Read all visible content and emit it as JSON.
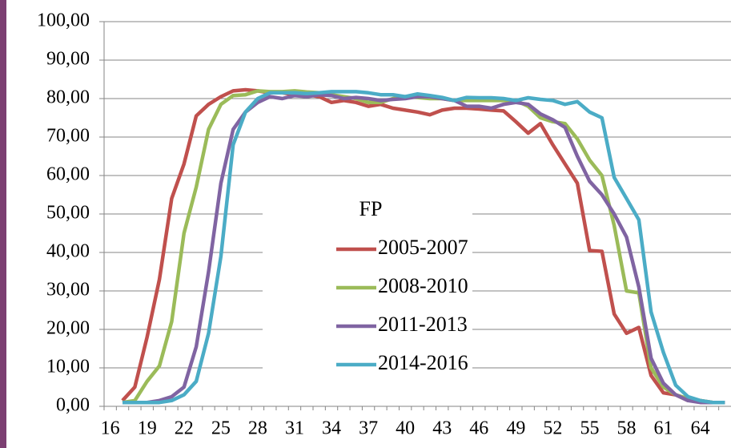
{
  "chart_data": {
    "type": "line",
    "categories": [
      "16",
      null,
      null,
      "19",
      null,
      null,
      "22",
      null,
      null,
      "25",
      null,
      null,
      "28",
      null,
      null,
      "31",
      null,
      null,
      "34",
      null,
      null,
      "37",
      null,
      null,
      "40",
      null,
      null,
      "43",
      null,
      null,
      "46",
      null,
      null,
      "49",
      null,
      null,
      "52",
      null,
      null,
      "55",
      null,
      null,
      "58",
      null,
      null,
      "61",
      null,
      null,
      "64",
      null,
      null
    ],
    "legend_title": "FP",
    "series": [
      {
        "name": "2005-2007",
        "color": "#c0504d",
        "values": [
          null,
          1.5,
          5,
          18,
          33,
          54,
          63,
          75.5,
          78.5,
          80.5,
          82,
          82.3,
          82,
          81.5,
          81.5,
          81,
          81,
          80.5,
          79,
          79.5,
          79,
          78,
          78.5,
          77.5,
          77,
          76.5,
          75.8,
          77,
          77.5,
          77.5,
          77.3,
          77,
          76.8,
          74,
          71,
          73.5,
          68,
          63,
          58,
          40.5,
          40.3,
          24,
          19,
          20.5,
          8,
          3.5,
          3,
          1.5,
          1.5,
          1,
          1
        ]
      },
      {
        "name": "2008-2010",
        "color": "#9bbb59",
        "values": [
          null,
          1,
          1.5,
          6.5,
          10.5,
          22,
          45,
          57,
          72,
          78.5,
          80.8,
          81,
          82,
          81.8,
          81.8,
          82,
          81.7,
          81.5,
          81,
          80.5,
          80,
          79,
          79,
          80,
          80.5,
          80.3,
          80,
          80,
          79.5,
          79.5,
          79.5,
          79.5,
          79.5,
          79.5,
          78,
          75,
          74,
          73.5,
          69.5,
          64,
          60,
          47,
          30,
          29.5,
          10,
          5,
          3,
          2,
          1.5,
          1,
          1
        ]
      },
      {
        "name": "2011-2013",
        "color": "#8064a2",
        "values": [
          null,
          1,
          1,
          1,
          1.5,
          2.5,
          5,
          15.5,
          35,
          58,
          72,
          76.5,
          79,
          80.5,
          80,
          80.8,
          80.5,
          81,
          80.8,
          80,
          80.3,
          80,
          79.5,
          79.8,
          80,
          80.5,
          80.5,
          80,
          79.5,
          78,
          78,
          77.5,
          78.5,
          79,
          78.5,
          76,
          74.5,
          72.5,
          65,
          58.5,
          55,
          50,
          44,
          31,
          12.5,
          6,
          3,
          1.5,
          1,
          1,
          1
        ]
      },
      {
        "name": "2014-2016",
        "color": "#4bacc6",
        "values": [
          null,
          1,
          1,
          1,
          1,
          1.5,
          3,
          6.5,
          19,
          39,
          68,
          76.5,
          80,
          81.5,
          81.5,
          81.5,
          81.3,
          81.5,
          81.8,
          81.8,
          81.8,
          81.5,
          81,
          81,
          80.5,
          81.2,
          80.8,
          80.3,
          79.5,
          80.3,
          80.2,
          80.2,
          80,
          79.5,
          80.2,
          79.8,
          79.5,
          78.5,
          79.2,
          76.5,
          75,
          59.5,
          54,
          48.5,
          24.5,
          14,
          5.5,
          2.5,
          1.5,
          1,
          1
        ]
      }
    ],
    "ylim": [
      0,
      100
    ],
    "yticks": [
      {
        "value": 0,
        "label": "0,00"
      },
      {
        "value": 10,
        "label": "10,00"
      },
      {
        "value": 20,
        "label": "20,00"
      },
      {
        "value": 30,
        "label": "30,00"
      },
      {
        "value": 40,
        "label": "40,00"
      },
      {
        "value": 50,
        "label": "50,00"
      },
      {
        "value": 60,
        "label": "60,00"
      },
      {
        "value": 70,
        "label": "70,00"
      },
      {
        "value": 80,
        "label": "80,00"
      },
      {
        "value": 90,
        "label": "90,00"
      },
      {
        "value": 100,
        "label": "100,00"
      }
    ],
    "grid": true
  }
}
